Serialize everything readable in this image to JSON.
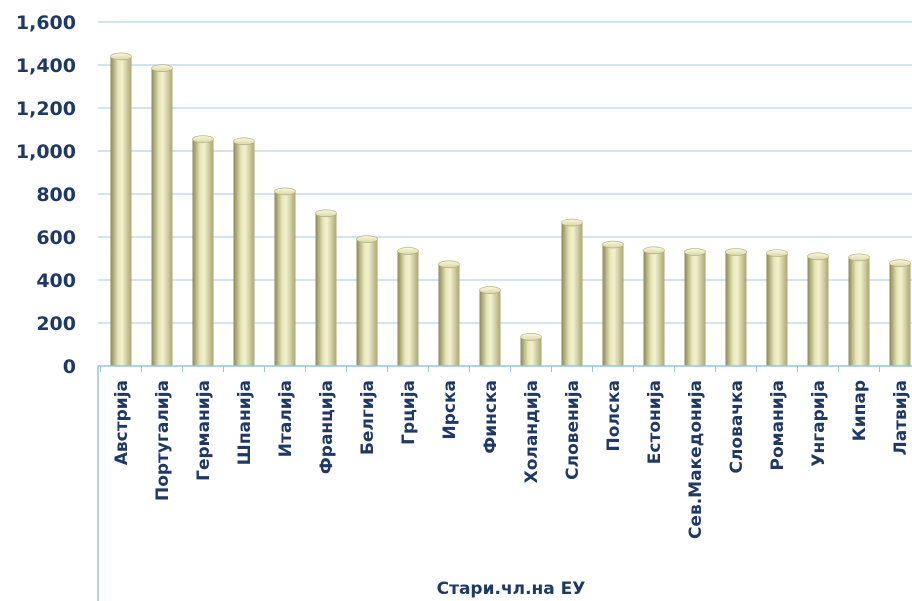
{
  "chart_data": {
    "type": "bar",
    "categories": [
      "Австрија",
      "Португалија",
      "Германија",
      "Шпанија",
      "Италија",
      "Франција",
      "Белгија",
      "Грција",
      "Ирска",
      "Финска",
      "Холандија",
      "Словенија",
      "Полска",
      "Естонија",
      "Сев.Македонија",
      "Словачка",
      "Романија",
      "Унгарија",
      "Кипар",
      "Латвија"
    ],
    "values": [
      1440,
      1385,
      1055,
      1045,
      812,
      710,
      590,
      535,
      473,
      353,
      135,
      667,
      565,
      538,
      530,
      530,
      525,
      510,
      505,
      478
    ],
    "ylim": [
      0,
      1600
    ],
    "yticks": [
      "0",
      "200",
      "400",
      "600",
      "800",
      "1,000",
      "1,200",
      "1,400",
      "1,600"
    ],
    "group_label": "Стари.чл.на ЕУ",
    "grid": true,
    "colors": {
      "bar_light": "#f3f1c8",
      "bar_mid": "#c9c79a",
      "bar_dark": "#7f7d4e",
      "gridline": "#c5dcea",
      "text": "#1f3864",
      "axis": "#9cc3db"
    }
  }
}
